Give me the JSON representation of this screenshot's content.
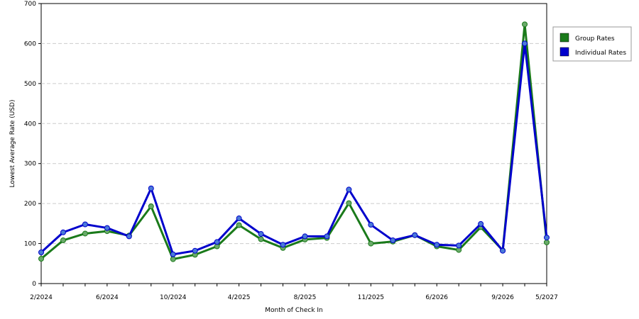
{
  "chart_data": {
    "type": "line",
    "title": "",
    "xlabel": "Month of Check In",
    "ylabel": "Lowest Average Rate (USD)",
    "ylim": [
      0,
      700
    ],
    "yticks": [
      "0",
      "100",
      "200",
      "300",
      "400",
      "500",
      "600",
      "700"
    ],
    "grid": "horizontal dashed",
    "legend_position": "right",
    "xtick_labels": [
      {
        "index": 0,
        "label": "2/2024"
      },
      {
        "index": 3,
        "label": "6/2024"
      },
      {
        "index": 6,
        "label": "10/2024"
      },
      {
        "index": 9,
        "label": "4/2025"
      },
      {
        "index": 12,
        "label": "8/2025"
      },
      {
        "index": 15,
        "label": "11/2025"
      },
      {
        "index": 18,
        "label": "6/2026"
      },
      {
        "index": 21,
        "label": "9/2026"
      },
      {
        "index": 23,
        "label": "5/2027"
      }
    ],
    "series": [
      {
        "name": "Group Rates",
        "color": "#1a7a1a",
        "marker_color": "#6aaa6a",
        "values": [
          62,
          108,
          125,
          131,
          120,
          193,
          61,
          72,
          93,
          146,
          111,
          89,
          110,
          114,
          201,
          100,
          105,
          121,
          93,
          84,
          141,
          83,
          648,
          103
        ]
      },
      {
        "name": "Individual Rates",
        "color": "#0000cc",
        "marker_color": "#4a7ad8",
        "values": [
          78,
          128,
          148,
          139,
          118,
          238,
          73,
          82,
          104,
          163,
          124,
          97,
          118,
          118,
          235,
          147,
          108,
          121,
          97,
          95,
          149,
          82,
          600,
          115
        ]
      }
    ]
  }
}
